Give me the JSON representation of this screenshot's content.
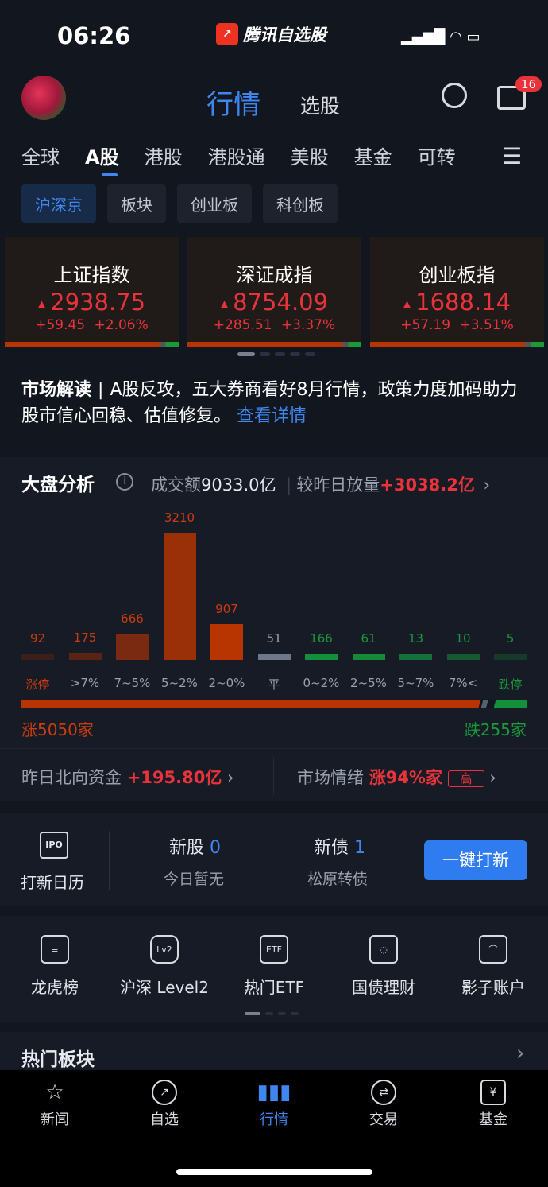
{
  "status": {
    "time": "06:26",
    "app": "腾讯自选股"
  },
  "header": {
    "tabs": [
      "行情",
      "选股"
    ],
    "badge": "16"
  },
  "market_tabs": [
    "全球",
    "A股",
    "港股",
    "港股通",
    "美股",
    "基金",
    "可转"
  ],
  "chips": [
    "沪深京",
    "板块",
    "创业板",
    "科创板"
  ],
  "indices": [
    {
      "name": "上证指数",
      "value": "2938.75",
      "change": "+59.45",
      "pct": "+2.06%"
    },
    {
      "name": "深证成指",
      "value": "8754.09",
      "change": "+285.51",
      "pct": "+3.37%"
    },
    {
      "name": "创业板指",
      "value": "1688.14",
      "change": "+57.19",
      "pct": "+3.51%"
    }
  ],
  "news": {
    "label": "市场解读",
    "text": "A股反攻，五大券商看好8月行情，政策力度加码助力股市信心回稳、估值修复。",
    "link": "查看详情"
  },
  "analysis": {
    "title": "大盘分析",
    "turnover_label": "成交额",
    "turnover": "9033.0亿",
    "vol_label": "较昨日放量",
    "vol": "+3038.2亿",
    "up_label": "涨",
    "up_count": "5050",
    "down_label": "跌",
    "down_count": "255",
    "unit": "家"
  },
  "chart_data": {
    "type": "bar",
    "categories": [
      "涨停",
      ">7%",
      "7~5%",
      "5~2%",
      "2~0%",
      "平",
      "0~2%",
      "2~5%",
      "5~7%",
      "7%<",
      "跌停"
    ],
    "values": [
      92,
      175,
      666,
      3210,
      907,
      51,
      166,
      61,
      13,
      10,
      5
    ],
    "colors": [
      "#3a2019",
      "#5a2414",
      "#7a2a10",
      "#9a3008",
      "#b83400",
      "#6f7888",
      "#14903a",
      "#168a38",
      "#17703a",
      "#175a32",
      "#173a28"
    ],
    "label_colors": [
      "#c83c10",
      "#c83c10",
      "#c83c10",
      "#c83c10",
      "#c83c10",
      "#9aa0ad",
      "#1a9a3a",
      "#1a9a3a",
      "#1a9a3a",
      "#1a9a3a",
      "#1a9a3a"
    ]
  },
  "north": {
    "label": "昨日北向资金",
    "value": "+195.80亿"
  },
  "mood": {
    "label": "市场情绪",
    "value": "涨94%家",
    "level": "高"
  },
  "ipo": {
    "calendar": "打新日历",
    "new_stock_label": "新股",
    "new_stock": "0",
    "new_stock_sub": "今日暂无",
    "new_bond_label": "新债",
    "new_bond": "1",
    "new_bond_sub": "松原转债",
    "button": "一键打新"
  },
  "tools": [
    "龙虎榜",
    "沪深 Level2",
    "热门ETF",
    "国债理财",
    "影子账户"
  ],
  "hot": {
    "title": "热门板块"
  },
  "tabbar": [
    "新闻",
    "自选",
    "行情",
    "交易",
    "基金"
  ]
}
